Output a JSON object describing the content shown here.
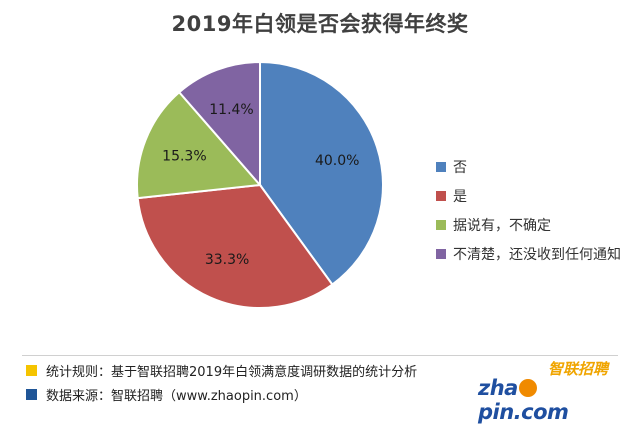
{
  "chart_data": {
    "type": "pie",
    "title": "2019年白领是否会获得年终奖",
    "categories": [
      "否",
      "是",
      "据说有，不确定",
      "不清楚，还没收到任何通知"
    ],
    "values": [
      40.0,
      33.3,
      15.3,
      11.4
    ],
    "labels": [
      "40.0%",
      "33.3%",
      "15.3%",
      "11.4%"
    ],
    "colors": [
      "#4f81bd",
      "#c0504d",
      "#9bbb59",
      "#8064a2"
    ],
    "legend_position": "right"
  },
  "footer": {
    "rule_text": "统计规则：基于智联招聘2019年白领满意度调研数据的统计分析",
    "rule_color": "#f5c400",
    "source_text": "数据来源：智联招聘（www.zhaopin.com）",
    "source_color": "#1f5597"
  },
  "logo": {
    "cn": "智联招聘",
    "en_part1": "zha",
    "en_part2": "pin.com"
  }
}
